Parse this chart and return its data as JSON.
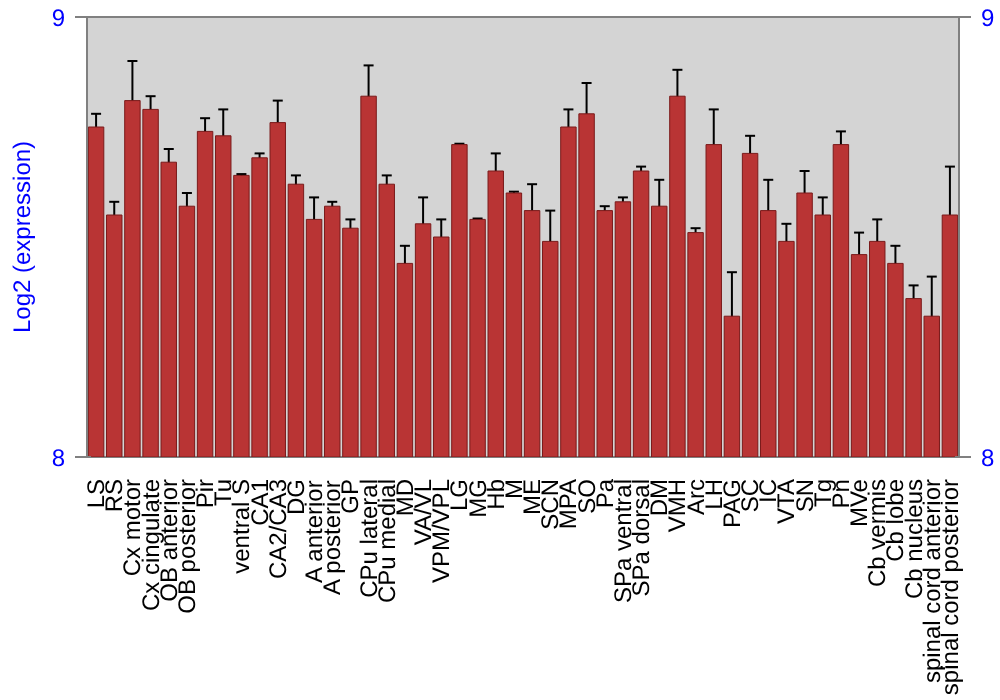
{
  "chart_data": {
    "type": "bar",
    "ylabel": "Log2 (expression)",
    "categories": [
      "LS",
      "RS",
      "Cx motor",
      "Cx cingulate",
      "OB anterior",
      "OB posterior",
      "Pir",
      "Tu",
      "ventral S",
      "CA1",
      "CA2/CA3",
      "DG",
      "A anterior",
      "A posterior",
      "GP",
      "CPu lateral",
      "CPu medial",
      "MD",
      "VA/VL",
      "VPM/VPL",
      "LG",
      "MG",
      "Hb",
      "M",
      "ME",
      "SCN",
      "MPA",
      "SO",
      "Pa",
      "SPa ventral",
      "SPa dorsal",
      "DM",
      "VMH",
      "Arc",
      "LH",
      "PAG",
      "SC",
      "IC",
      "VTA",
      "SN",
      "Tg",
      "Pn",
      "MVe",
      "Cb vermis",
      "Cb lobe",
      "Cb nucleus",
      "spinal cord anterior",
      "spinal cord posterior"
    ],
    "values": [
      8.75,
      8.55,
      8.81,
      8.79,
      8.67,
      8.57,
      8.74,
      8.73,
      8.64,
      8.68,
      8.76,
      8.62,
      8.54,
      8.57,
      8.52,
      8.82,
      8.62,
      8.44,
      8.53,
      8.5,
      8.71,
      8.54,
      8.65,
      8.6,
      8.56,
      8.49,
      8.75,
      8.78,
      8.56,
      8.58,
      8.65,
      8.57,
      8.82,
      8.51,
      8.71,
      8.32,
      8.69,
      8.56,
      8.49,
      8.6,
      8.55,
      8.71,
      8.46,
      8.49,
      8.44,
      8.36,
      8.32,
      8.55
    ],
    "errors": [
      0.03,
      0.03,
      0.09,
      0.03,
      0.03,
      0.03,
      0.03,
      0.06,
      0.003,
      0.01,
      0.05,
      0.02,
      0.05,
      0.01,
      0.02,
      0.07,
      0.02,
      0.04,
      0.06,
      0.04,
      0.002,
      0.002,
      0.04,
      0.003,
      0.06,
      0.07,
      0.04,
      0.07,
      0.01,
      0.01,
      0.01,
      0.06,
      0.06,
      0.01,
      0.08,
      0.1,
      0.04,
      0.07,
      0.04,
      0.05,
      0.04,
      0.03,
      0.05,
      0.05,
      0.04,
      0.03,
      0.09,
      0.11
    ],
    "color": "#b93434",
    "ylim": [
      8,
      9
    ],
    "yticks": [
      8,
      9
    ],
    "y2lim": [
      8,
      9
    ],
    "y2ticks": [
      8,
      9
    ],
    "grid": false
  }
}
